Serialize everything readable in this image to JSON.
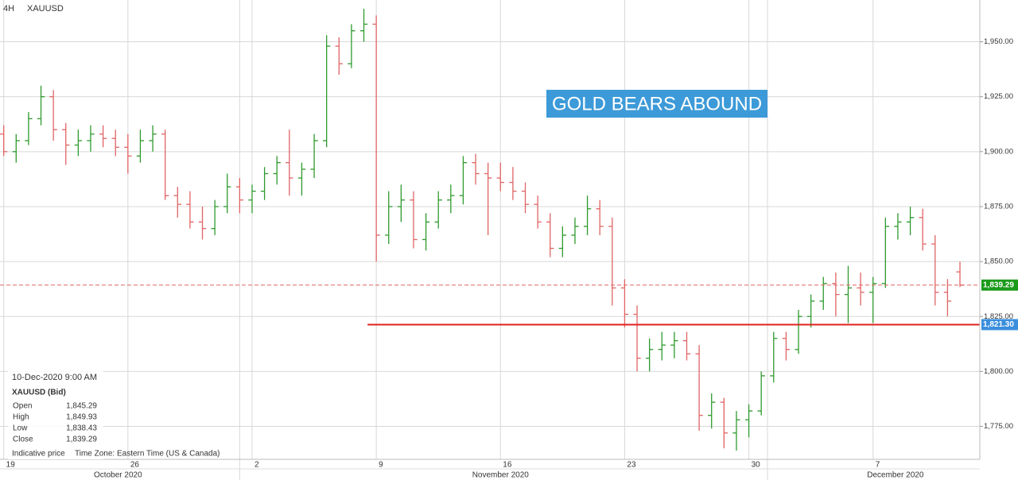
{
  "chart_data": {
    "type": "ohlc",
    "timeframe": "4H",
    "title": "XAUUSD",
    "annotation": "GOLD BEARS ABOUND",
    "up_color": "#2e9a2e",
    "down_color": "#e06464",
    "ylim": [
      1760,
      1969
    ],
    "yticks": [
      {
        "value": 1775,
        "label": "1,775.00"
      },
      {
        "value": 1800,
        "label": "1,800.00"
      },
      {
        "value": 1825,
        "label": "1,825.00"
      },
      {
        "value": 1850,
        "label": "1,850.00"
      },
      {
        "value": 1875,
        "label": "1,875.00"
      },
      {
        "value": 1900,
        "label": "1,900.00"
      },
      {
        "value": 1925,
        "label": "1,925.00"
      },
      {
        "value": 1950,
        "label": "1,950.00"
      }
    ],
    "xlim": [
      -0.3,
      78.6
    ],
    "xticks": [
      {
        "value": 0,
        "label": "19"
      },
      {
        "value": 10,
        "label": "26"
      },
      {
        "value": 20,
        "label": "2"
      },
      {
        "value": 30,
        "label": "9"
      },
      {
        "value": 40,
        "label": "16"
      },
      {
        "value": 50,
        "label": "23"
      },
      {
        "value": 60,
        "label": "30"
      },
      {
        "value": 70,
        "label": "7"
      }
    ],
    "month_bounds": [
      19,
      61.5
    ],
    "month_labels": [
      {
        "value": 9.2,
        "label": "October 2020"
      },
      {
        "value": 40,
        "label": "November 2020"
      },
      {
        "value": 71.8,
        "label": "December 2020"
      }
    ],
    "grid": true,
    "current_price": {
      "value": 1839.29,
      "label": "1,839.29",
      "color": "#1a9a1a"
    },
    "support_line": {
      "value": 1821.3,
      "label": "1,821.30",
      "start": 29.3,
      "color": "#e02020",
      "label_color": "#3a8fdd"
    },
    "bars": [
      [
        1908,
        1912,
        1898,
        1900
      ],
      [
        1900,
        1908,
        1895,
        1905
      ],
      [
        1905,
        1918,
        1903,
        1915
      ],
      [
        1915,
        1930,
        1912,
        1925
      ],
      [
        1925,
        1928,
        1905,
        1910
      ],
      [
        1910,
        1913,
        1894,
        1903
      ],
      [
        1903,
        1910,
        1898,
        1905
      ],
      [
        1905,
        1912,
        1900,
        1908
      ],
      [
        1908,
        1912,
        1902,
        1906
      ],
      [
        1906,
        1910,
        1898,
        1902
      ],
      [
        1902,
        1908,
        1890,
        1898
      ],
      [
        1898,
        1910,
        1895,
        1905
      ],
      [
        1905,
        1912,
        1900,
        1908
      ],
      [
        1908,
        1910,
        1878,
        1880
      ],
      [
        1880,
        1884,
        1870,
        1876
      ],
      [
        1876,
        1882,
        1865,
        1868
      ],
      [
        1868,
        1875,
        1860,
        1865
      ],
      [
        1865,
        1878,
        1862,
        1875
      ],
      [
        1875,
        1890,
        1872,
        1884
      ],
      [
        1884,
        1888,
        1872,
        1878
      ],
      [
        1878,
        1885,
        1872,
        1882
      ],
      [
        1882,
        1893,
        1878,
        1890
      ],
      [
        1890,
        1898,
        1885,
        1895
      ],
      [
        1895,
        1910,
        1880,
        1888
      ],
      [
        1888,
        1895,
        1880,
        1892
      ],
      [
        1892,
        1908,
        1888,
        1905
      ],
      [
        1905,
        1953,
        1902,
        1948
      ],
      [
        1948,
        1952,
        1935,
        1940
      ],
      [
        1940,
        1958,
        1938,
        1955
      ],
      [
        1955,
        1965,
        1950,
        1958
      ],
      [
        1958,
        1962,
        1850,
        1862
      ],
      [
        1862,
        1882,
        1858,
        1875
      ],
      [
        1875,
        1885,
        1868,
        1878
      ],
      [
        1878,
        1882,
        1856,
        1860
      ],
      [
        1860,
        1872,
        1855,
        1868
      ],
      [
        1868,
        1882,
        1865,
        1878
      ],
      [
        1878,
        1885,
        1872,
        1880
      ],
      [
        1880,
        1898,
        1876,
        1895
      ],
      [
        1895,
        1899,
        1885,
        1890
      ],
      [
        1890,
        1895,
        1862,
        1888
      ],
      [
        1888,
        1895,
        1882,
        1886
      ],
      [
        1886,
        1893,
        1878,
        1882
      ],
      [
        1882,
        1886,
        1872,
        1876
      ],
      [
        1876,
        1880,
        1865,
        1868
      ],
      [
        1868,
        1872,
        1852,
        1856
      ],
      [
        1856,
        1866,
        1852,
        1862
      ],
      [
        1862,
        1870,
        1858,
        1866
      ],
      [
        1866,
        1880,
        1862,
        1874
      ],
      [
        1874,
        1878,
        1862,
        1866
      ],
      [
        1866,
        1870,
        1830,
        1838
      ],
      [
        1838,
        1842,
        1820,
        1826
      ],
      [
        1826,
        1830,
        1800,
        1806
      ],
      [
        1806,
        1815,
        1800,
        1810
      ],
      [
        1810,
        1818,
        1805,
        1812
      ],
      [
        1812,
        1818,
        1806,
        1814
      ],
      [
        1814,
        1818,
        1805,
        1808
      ],
      [
        1808,
        1812,
        1773,
        1780
      ],
      [
        1780,
        1790,
        1774,
        1786
      ],
      [
        1786,
        1788,
        1765,
        1772
      ],
      [
        1772,
        1782,
        1764,
        1778
      ],
      [
        1778,
        1785,
        1770,
        1782
      ],
      [
        1782,
        1800,
        1780,
        1798
      ],
      [
        1798,
        1818,
        1795,
        1815
      ],
      [
        1815,
        1818,
        1805,
        1810
      ],
      [
        1810,
        1828,
        1808,
        1825
      ],
      [
        1825,
        1835,
        1820,
        1832
      ],
      [
        1832,
        1843,
        1828,
        1840
      ],
      [
        1840,
        1845,
        1825,
        1835
      ],
      [
        1835,
        1848,
        1822,
        1838
      ],
      [
        1838,
        1845,
        1830,
        1836
      ],
      [
        1836,
        1843,
        1822,
        1840
      ],
      [
        1840,
        1870,
        1838,
        1866
      ],
      [
        1866,
        1872,
        1860,
        1868
      ],
      [
        1868,
        1875,
        1862,
        1870
      ],
      [
        1870,
        1874,
        1855,
        1858
      ],
      [
        1858,
        1862,
        1830,
        1836
      ],
      [
        1836,
        1842,
        1825,
        1832
      ],
      [
        1845.29,
        1849.93,
        1838.43,
        1839.29
      ]
    ],
    "info": {
      "date": "10-Dec-2020 9:00 AM",
      "symbol": "XAUUSD (Bid)",
      "rows": [
        {
          "name": "Open",
          "value": "1,845.29"
        },
        {
          "name": "High",
          "value": "1,849.93"
        },
        {
          "name": "Low",
          "value": "1,838.43"
        },
        {
          "name": "Close",
          "value": "1,839.29"
        }
      ],
      "footer_left": "Indicative price",
      "footer_right": "Time Zone: Eastern Time (US & Canada)"
    }
  }
}
